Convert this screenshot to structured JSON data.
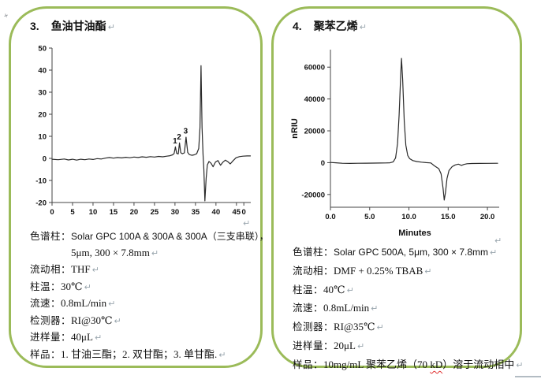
{
  "return_mark": "↵",
  "anchor_mark": "+",
  "accent": {
    "panel_border": "#9bbb59",
    "spellcheck_underline": "#e03131"
  },
  "panels": [
    {
      "number": "3.",
      "title": "鱼油甘油酯",
      "specs": [
        {
          "label": "色谱柱：",
          "value": "Solar GPC 100A & 300A & 300A（三支串联），",
          "ret": false
        },
        {
          "cont": true,
          "value": "5μm, 300 × 7.8mm",
          "ret": true
        },
        {
          "label": "流动相：",
          "value": "THF",
          "ret": true
        },
        {
          "label": "柱温：",
          "value": "30℃",
          "ret": true
        },
        {
          "label": "流速：",
          "value": "0.8mL/min",
          "ret": true
        },
        {
          "label": "检测器：",
          "value": "RI@30℃",
          "ret": true
        },
        {
          "label": "进样量：",
          "value": "40μL",
          "ret": true
        },
        {
          "label": "样品：",
          "value": "1. 甘油三酯；2. 双甘酯；3. 单甘酯.",
          "ret": true
        }
      ]
    },
    {
      "number": "4.",
      "title": "聚苯乙烯",
      "specs": [
        {
          "label": "色谱柱：",
          "value": "Solar GPC 500A, 5μm, 300 × 7.8mm",
          "ret": true
        },
        {
          "label": "流动相：",
          "value": "DMF + 0.25% TBAB",
          "ret": true
        },
        {
          "label": "柱温：",
          "value": "40℃",
          "ret": true
        },
        {
          "label": "流速：",
          "value": "0.8mL/min",
          "ret": true
        },
        {
          "label": "检测器：",
          "value": "RI@35℃",
          "ret": true
        },
        {
          "label": "进样量：",
          "value": "20μL",
          "ret": true
        },
        {
          "label": "样品：",
          "parts": [
            {
              "t": "10mg/mL 聚苯乙烯（70 "
            },
            {
              "t": "kD",
              "squiggle": true
            },
            {
              "t": "）溶于流动相中"
            }
          ],
          "ret": true
        }
      ]
    }
  ],
  "chart_data": [
    {
      "type": "line",
      "title": "",
      "xlabel": "",
      "ylabel": "",
      "xlim": [
        0,
        48.5
      ],
      "ylim": [
        -20,
        50
      ],
      "grid": false,
      "legend": "none",
      "xticks": [
        {
          "v": 0,
          "label": "0"
        },
        {
          "v": 5,
          "label": "5"
        },
        {
          "v": 10,
          "label": "10"
        },
        {
          "v": 15,
          "label": "15"
        },
        {
          "v": 20,
          "label": "20"
        },
        {
          "v": 25,
          "label": "25"
        },
        {
          "v": 30,
          "label": "30"
        },
        {
          "v": 35,
          "label": "35"
        },
        {
          "v": 40,
          "label": "40"
        },
        {
          "v": 45,
          "label": "45"
        },
        {
          "v": 46.8,
          "label": "0"
        }
      ],
      "yticks": [
        {
          "v": -20,
          "label": "-20"
        },
        {
          "v": -10,
          "label": "-10"
        },
        {
          "v": 0,
          "label": "0"
        },
        {
          "v": 10,
          "label": "10"
        },
        {
          "v": 20,
          "label": "20"
        },
        {
          "v": 30,
          "label": "30"
        },
        {
          "v": 40,
          "label": "40"
        },
        {
          "v": 50,
          "label": "50"
        }
      ],
      "annotations": [
        {
          "x": 30.0,
          "y": 6.8,
          "text": "1"
        },
        {
          "x": 31.0,
          "y": 8.6,
          "text": "2"
        },
        {
          "x": 32.6,
          "y": 11.3,
          "text": "3"
        }
      ],
      "points": [
        [
          0,
          -0.4
        ],
        [
          1.5,
          -0.6
        ],
        [
          3,
          -0.3
        ],
        [
          4,
          -0.7
        ],
        [
          5,
          -0.4
        ],
        [
          6,
          -0.8
        ],
        [
          7,
          -0.4
        ],
        [
          8,
          -0.6
        ],
        [
          9,
          -0.3
        ],
        [
          10,
          -0.5
        ],
        [
          11,
          -0.1
        ],
        [
          12,
          -0.3
        ],
        [
          13,
          0.1
        ],
        [
          14,
          0.4
        ],
        [
          15,
          0.1
        ],
        [
          16,
          0.4
        ],
        [
          17,
          0.2
        ],
        [
          18,
          0.5
        ],
        [
          19,
          0.3
        ],
        [
          20,
          0.6
        ],
        [
          21,
          0.4
        ],
        [
          22,
          0.7
        ],
        [
          23,
          0.5
        ],
        [
          24,
          0.8
        ],
        [
          25,
          0.6
        ],
        [
          26,
          0.9
        ],
        [
          27,
          0.7
        ],
        [
          28,
          1.0
        ],
        [
          28.8,
          1.2
        ],
        [
          29.4,
          1.6
        ],
        [
          29.8,
          2.2
        ],
        [
          30.1,
          5.2
        ],
        [
          30.4,
          2.3
        ],
        [
          30.8,
          2.0
        ],
        [
          31.1,
          7.0
        ],
        [
          31.4,
          2.6
        ],
        [
          31.8,
          2.1
        ],
        [
          32.3,
          2.5
        ],
        [
          32.7,
          9.6
        ],
        [
          33.1,
          2.7
        ],
        [
          33.5,
          1.7
        ],
        [
          34.1,
          1.4
        ],
        [
          34.7,
          1.6
        ],
        [
          35.3,
          2.1
        ],
        [
          35.8,
          4.5
        ],
        [
          36.1,
          14
        ],
        [
          36.35,
          42
        ],
        [
          36.6,
          14
        ],
        [
          36.85,
          1.5
        ],
        [
          37.05,
          -5
        ],
        [
          37.3,
          -19.3
        ],
        [
          37.6,
          -9
        ],
        [
          37.9,
          -3
        ],
        [
          38.3,
          -1.4
        ],
        [
          38.8,
          -2.2
        ],
        [
          39.3,
          -3.8
        ],
        [
          39.9,
          -1.6
        ],
        [
          40.5,
          -1.0
        ],
        [
          41.1,
          -3.1
        ],
        [
          41.7,
          -1.7
        ],
        [
          42.3,
          -0.8
        ],
        [
          42.9,
          -1.5
        ],
        [
          43.5,
          -2.5
        ],
        [
          44.2,
          -1.0
        ],
        [
          44.9,
          0.3
        ],
        [
          45.7,
          0.8
        ],
        [
          46.6,
          1.0
        ],
        [
          47.6,
          1.1
        ],
        [
          48.4,
          1.1
        ]
      ]
    },
    {
      "type": "line",
      "title": "",
      "xlabel": "Minutes",
      "ylabel": "nRIU",
      "xlim": [
        0,
        21.5
      ],
      "ylim": [
        -28000,
        71000
      ],
      "grid": false,
      "legend": "none",
      "xticks": [
        {
          "v": 0,
          "label": "0.0"
        },
        {
          "v": 5,
          "label": "5.0"
        },
        {
          "v": 10,
          "label": "10.0"
        },
        {
          "v": 15,
          "label": "15.0"
        },
        {
          "v": 20,
          "label": "20.0"
        }
      ],
      "yticks": [
        {
          "v": -20000,
          "label": "-20000"
        },
        {
          "v": 0,
          "label": "0"
        },
        {
          "v": 20000,
          "label": "20000"
        },
        {
          "v": 40000,
          "label": "40000"
        },
        {
          "v": 60000,
          "label": "60000"
        }
      ],
      "annotations": [],
      "points": [
        [
          0,
          100
        ],
        [
          0.7,
          -100
        ],
        [
          1.5,
          -400
        ],
        [
          2.5,
          -500
        ],
        [
          3.5,
          -400
        ],
        [
          4.5,
          -350
        ],
        [
          5.5,
          -300
        ],
        [
          6.3,
          -250
        ],
        [
          7.0,
          -200
        ],
        [
          7.6,
          -100
        ],
        [
          8.0,
          500
        ],
        [
          8.3,
          3000
        ],
        [
          8.55,
          12000
        ],
        [
          8.75,
          30000
        ],
        [
          8.95,
          55000
        ],
        [
          9.05,
          65500
        ],
        [
          9.2,
          52000
        ],
        [
          9.4,
          26000
        ],
        [
          9.6,
          11000
        ],
        [
          9.85,
          4500
        ],
        [
          10.1,
          2500
        ],
        [
          10.5,
          1300
        ],
        [
          11.0,
          700
        ],
        [
          11.6,
          300
        ],
        [
          12.2,
          0
        ],
        [
          12.8,
          -200
        ],
        [
          13.2,
          -1800
        ],
        [
          13.5,
          -2800
        ],
        [
          13.8,
          -3800
        ],
        [
          14.1,
          -7000
        ],
        [
          14.35,
          -16000
        ],
        [
          14.5,
          -23500
        ],
        [
          14.65,
          -19000
        ],
        [
          14.85,
          -10000
        ],
        [
          15.1,
          -5000
        ],
        [
          15.5,
          -2500
        ],
        [
          15.9,
          -1400
        ],
        [
          16.3,
          -900
        ],
        [
          16.7,
          -1700
        ],
        [
          17.0,
          -1100
        ],
        [
          17.4,
          -700
        ],
        [
          18.0,
          -550
        ],
        [
          19.0,
          -480
        ],
        [
          20.0,
          -420
        ],
        [
          21.3,
          -380
        ]
      ]
    }
  ]
}
